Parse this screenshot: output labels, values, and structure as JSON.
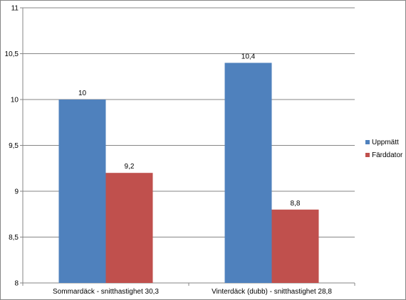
{
  "chart_data": {
    "type": "bar",
    "categories": [
      "Sommardäck - snitthastighet 30,3",
      "Vinterdäck (dubb) - snitthastighet 28,8"
    ],
    "series": [
      {
        "name": "Uppmätt",
        "values": [
          10,
          10.4
        ],
        "labels": [
          "10",
          "10,4"
        ],
        "color": "#4f81bd"
      },
      {
        "name": "Färddator",
        "values": [
          9.2,
          8.8
        ],
        "labels": [
          "9,2",
          "8,8"
        ],
        "color": "#c0504d"
      }
    ],
    "ylim": [
      8,
      11
    ],
    "yticks": [
      {
        "value": 8,
        "label": "8"
      },
      {
        "value": 8.5,
        "label": "8,5"
      },
      {
        "value": 9,
        "label": "9"
      },
      {
        "value": 9.5,
        "label": "9,5"
      },
      {
        "value": 10,
        "label": "10"
      },
      {
        "value": 10.5,
        "label": "10,5"
      },
      {
        "value": 11,
        "label": "11"
      }
    ],
    "grid": true,
    "legend_position": "right",
    "title": "",
    "xlabel": "",
    "ylabel": ""
  }
}
